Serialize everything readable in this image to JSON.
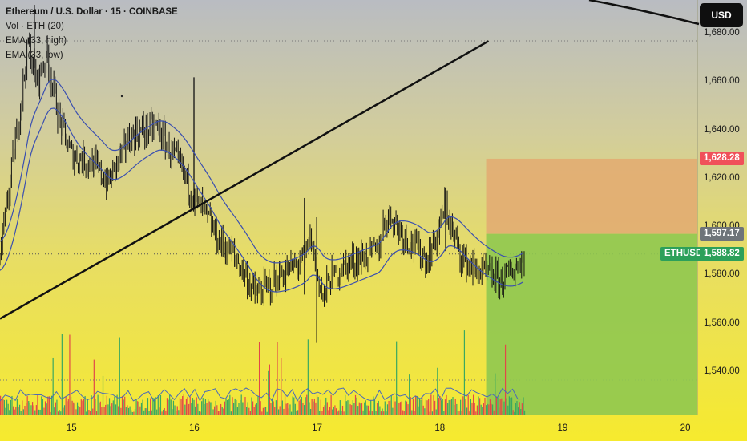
{
  "legend": {
    "title": "Ethereum / U.S. Dollar · 15 · COINBASE",
    "vol": "Vol · ETH (20)",
    "ema_high": "EMA (33, high)",
    "ema_low": "EMA (33, low)"
  },
  "unit_button": "USD",
  "price_tags": {
    "stop": "1,628.28",
    "entry": "1,597.17",
    "symbol": "ETHUSD",
    "current": "1,588.82"
  },
  "colors": {
    "stop_zone": "#e2ac72",
    "target_zone": "#8fc850",
    "stop_tag": "#f0505a",
    "entry_tag": "#6e7479",
    "current_tag": "#2ca05a",
    "ema": "#3a4fb0",
    "trendline": "#111111",
    "vol_up": "#3aa860",
    "vol_down": "#e24848"
  },
  "chart_data": {
    "type": "candlestick",
    "y_ticks": [
      "1,680.00",
      "1,660.00",
      "1,640.00",
      "1,620.00",
      "1,600.00",
      "1,580.00",
      "1,560.00",
      "1,540.00"
    ],
    "y_tick_values": [
      1680,
      1660,
      1640,
      1620,
      1600,
      1580,
      1560,
      1540
    ],
    "x_ticks": [
      "15",
      "16",
      "17",
      "18",
      "19",
      "20"
    ],
    "x_tick_days": [
      15,
      16,
      17,
      18,
      19,
      20
    ],
    "x_range_days": [
      14.42,
      20.1
    ],
    "y_range": [
      1522,
      1694
    ],
    "last_candle_day": 18.7,
    "position_zone": {
      "start_day": 18.38,
      "stop": 1628.28,
      "entry": 1597.17
    },
    "current_price": 1588.82,
    "trendline": {
      "start": [
        14.42,
        1562
      ],
      "end": [
        18.4,
        1677
      ]
    },
    "price_path": [
      [
        14.42,
        1588
      ],
      [
        14.5,
        1618
      ],
      [
        14.58,
        1648
      ],
      [
        14.65,
        1676
      ],
      [
        14.72,
        1660
      ],
      [
        14.8,
        1672
      ],
      [
        14.9,
        1645
      ],
      [
        15.0,
        1630
      ],
      [
        15.1,
        1628
      ],
      [
        15.2,
        1625
      ],
      [
        15.3,
        1618
      ],
      [
        15.4,
        1630
      ],
      [
        15.5,
        1638
      ],
      [
        15.6,
        1640
      ],
      [
        15.7,
        1642
      ],
      [
        15.8,
        1632
      ],
      [
        15.9,
        1624
      ],
      [
        16.0,
        1612
      ],
      [
        16.1,
        1605
      ],
      [
        16.2,
        1594
      ],
      [
        16.3,
        1590
      ],
      [
        16.4,
        1582
      ],
      [
        16.5,
        1572
      ],
      [
        16.6,
        1575
      ],
      [
        16.7,
        1580
      ],
      [
        16.8,
        1583
      ],
      [
        16.9,
        1587
      ],
      [
        16.95,
        1596
      ],
      [
        17.0,
        1582
      ],
      [
        17.05,
        1570
      ],
      [
        17.1,
        1578
      ],
      [
        17.2,
        1583
      ],
      [
        17.3,
        1586
      ],
      [
        17.4,
        1588
      ],
      [
        17.5,
        1590
      ],
      [
        17.55,
        1602
      ],
      [
        17.6,
        1605
      ],
      [
        17.7,
        1597
      ],
      [
        17.8,
        1592
      ],
      [
        17.9,
        1586
      ],
      [
        18.0,
        1600
      ],
      [
        18.05,
        1610
      ],
      [
        18.1,
        1598
      ],
      [
        18.2,
        1586
      ],
      [
        18.3,
        1582
      ],
      [
        18.4,
        1580
      ],
      [
        18.5,
        1578
      ],
      [
        18.6,
        1582
      ],
      [
        18.7,
        1589
      ]
    ],
    "spikes": [
      {
        "day": 14.7,
        "high": 1692,
        "low": 1660
      },
      {
        "day": 16.0,
        "high": 1662,
        "low": 1608
      },
      {
        "day": 16.9,
        "high": 1612,
        "low": 1572
      },
      {
        "day": 17.0,
        "high": 1604,
        "low": 1552
      },
      {
        "day": 18.05,
        "high": 1616,
        "low": 1590
      }
    ]
  }
}
